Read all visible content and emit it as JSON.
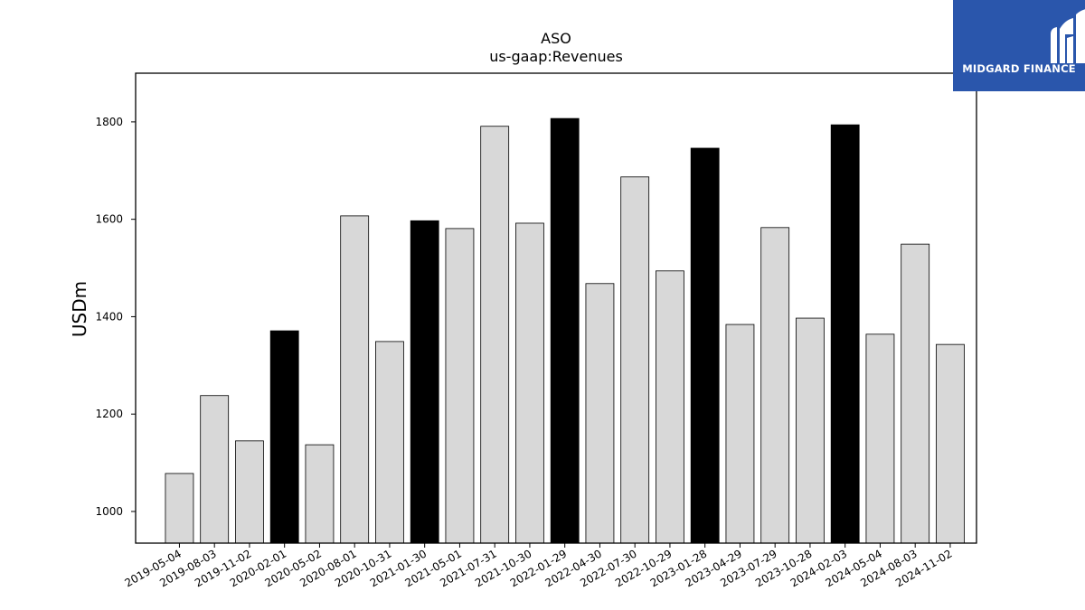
{
  "brand": {
    "name": "MIDGARD FINANCE",
    "bg_color": "#2a56ac"
  },
  "chart_data": {
    "type": "bar",
    "title": "ASO",
    "subtitle": "us-gaap:Revenues",
    "xlabel": "",
    "ylabel": "USDm",
    "ylim": [
      935,
      1900
    ],
    "yticks": [
      1000,
      1200,
      1400,
      1600,
      1800
    ],
    "grid": false,
    "categories": [
      "2019-05-04",
      "2019-08-03",
      "2019-11-02",
      "2020-02-01",
      "2020-05-02",
      "2020-08-01",
      "2020-10-31",
      "2021-01-30",
      "2021-05-01",
      "2021-07-31",
      "2021-10-30",
      "2022-01-29",
      "2022-04-30",
      "2022-07-30",
      "2022-10-29",
      "2023-01-28",
      "2023-04-29",
      "2023-07-29",
      "2023-10-28",
      "2024-02-03",
      "2024-05-04",
      "2024-08-03",
      "2024-11-02"
    ],
    "values": [
      1078,
      1238,
      1145,
      1371,
      1137,
      1607,
      1349,
      1597,
      1581,
      1791,
      1592,
      1807,
      1468,
      1687,
      1494,
      1746,
      1384,
      1583,
      1397,
      1794,
      1364,
      1549,
      1343
    ],
    "highlight": [
      false,
      false,
      false,
      true,
      false,
      false,
      false,
      true,
      false,
      false,
      false,
      true,
      false,
      false,
      false,
      true,
      false,
      false,
      false,
      true,
      false,
      false,
      false
    ],
    "colors": {
      "bar": "#d8d8d8",
      "highlight": "#000000",
      "edge": "#000000"
    }
  }
}
